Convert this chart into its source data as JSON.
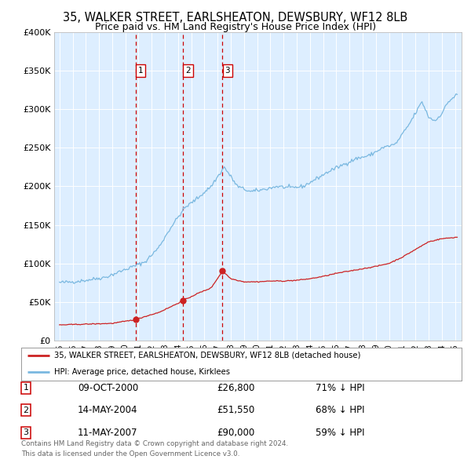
{
  "title": "35, WALKER STREET, EARLSHEATON, DEWSBURY, WF12 8LB",
  "subtitle": "Price paid vs. HM Land Registry's House Price Index (HPI)",
  "title_fontsize": 10.5,
  "subtitle_fontsize": 9,
  "background_color": "#ffffff",
  "plot_bg_color": "#ddeeff",
  "grid_color": "#c8d8e8",
  "hpi_color": "#7ab8e0",
  "price_color": "#cc2222",
  "transaction_dates_float": [
    2000.77,
    2004.37,
    2007.37
  ],
  "transaction_prices": [
    26800,
    51550,
    90000
  ],
  "transaction_labels": [
    "1",
    "2",
    "3"
  ],
  "legend_line1": "35, WALKER STREET, EARLSHEATON, DEWSBURY, WF12 8LB (detached house)",
  "legend_line2": "HPI: Average price, detached house, Kirklees",
  "table_rows": [
    [
      "1",
      "09-OCT-2000",
      "£26,800",
      "71% ↓ HPI"
    ],
    [
      "2",
      "14-MAY-2004",
      "£51,550",
      "68% ↓ HPI"
    ],
    [
      "3",
      "11-MAY-2007",
      "£90,000",
      "59% ↓ HPI"
    ]
  ],
  "footer": "Contains HM Land Registry data © Crown copyright and database right 2024.\nThis data is licensed under the Open Government Licence v3.0.",
  "ylim": [
    0,
    400000
  ],
  "yticks": [
    0,
    50000,
    100000,
    150000,
    200000,
    250000,
    300000,
    350000,
    400000
  ],
  "ytick_labels": [
    "£0",
    "£50K",
    "£100K",
    "£150K",
    "£200K",
    "£250K",
    "£300K",
    "£350K",
    "£400K"
  ],
  "xlim_start": 1994.6,
  "xlim_end": 2025.5,
  "hpi_key_dates": [
    1995.0,
    1996.0,
    1997.0,
    1998.5,
    2000.0,
    2001.5,
    2002.5,
    2003.5,
    2004.5,
    2005.5,
    2006.5,
    2007.5,
    2008.5,
    2009.5,
    2010.5,
    2011.5,
    2012.5,
    2013.5,
    2014.5,
    2015.5,
    2016.5,
    2017.5,
    2018.5,
    2019.5,
    2020.5,
    2021.5,
    2022.5,
    2023.0,
    2023.5,
    2024.0,
    2024.5,
    2025.2
  ],
  "hpi_key_values": [
    75000,
    76000,
    78000,
    82000,
    92000,
    102000,
    120000,
    148000,
    172000,
    185000,
    200000,
    225000,
    200000,
    193000,
    196000,
    200000,
    198000,
    200000,
    210000,
    220000,
    228000,
    236000,
    240000,
    250000,
    255000,
    280000,
    310000,
    290000,
    285000,
    295000,
    310000,
    320000
  ],
  "prop_key_dates": [
    1995.0,
    1997.0,
    1999.0,
    2000.77,
    2001.5,
    2002.5,
    2003.5,
    2004.37,
    2005.5,
    2006.5,
    2007.37,
    2008.0,
    2009.0,
    2010.0,
    2011.0,
    2012.0,
    2013.0,
    2014.0,
    2015.0,
    2016.0,
    2017.0,
    2018.0,
    2019.0,
    2020.0,
    2021.0,
    2022.0,
    2023.0,
    2024.0,
    2025.2
  ],
  "prop_key_values": [
    20000,
    21000,
    22000,
    26800,
    31000,
    36000,
    44000,
    51550,
    61000,
    68000,
    90000,
    80000,
    76000,
    76000,
    77000,
    77000,
    78000,
    80000,
    83000,
    87000,
    90000,
    93000,
    96000,
    100000,
    108000,
    118000,
    128000,
    132000,
    134000
  ]
}
